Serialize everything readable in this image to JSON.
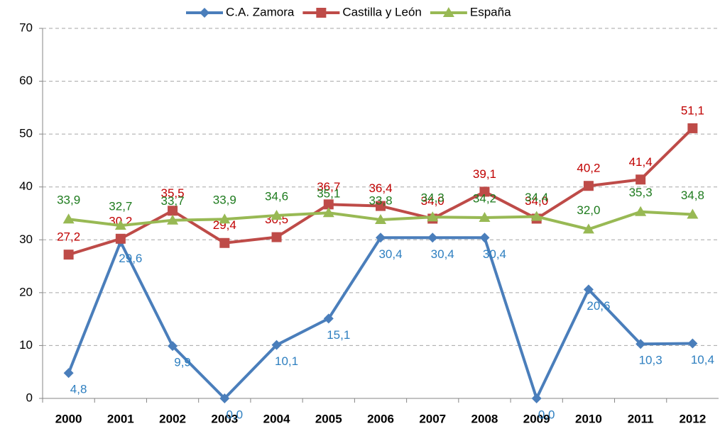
{
  "chart_data": {
    "type": "line",
    "categories": [
      "2000",
      "2001",
      "2002",
      "2003",
      "2004",
      "2005",
      "2006",
      "2007",
      "2008",
      "2009",
      "2010",
      "2011",
      "2012"
    ],
    "series": [
      {
        "name": "C.A. Zamora",
        "color": "#4a7ebb",
        "label_color": "#2e7fc0",
        "marker": "diamond",
        "values": [
          4.8,
          29.6,
          9.9,
          0.0,
          10.1,
          15.1,
          30.4,
          30.4,
          30.4,
          0.0,
          20.6,
          10.3,
          10.4
        ],
        "value_labels": [
          "4,8",
          "29,6",
          "9,9",
          "0,0",
          "10,1",
          "15,1",
          "30,4",
          "30,4",
          "30,4",
          "0,0",
          "20,6",
          "10,3",
          "10,4"
        ]
      },
      {
        "name": "Castilla y León",
        "color": "#be4b48",
        "label_color": "#c00000",
        "marker": "square",
        "values": [
          27.2,
          30.2,
          35.5,
          29.4,
          30.5,
          36.7,
          36.4,
          34.0,
          39.1,
          34.0,
          40.2,
          41.4,
          51.1
        ],
        "value_labels": [
          "27,2",
          "30,2",
          "35,5",
          "29,4",
          "30,5",
          "36,7",
          "36,4",
          "34,0",
          "39,1",
          "34,0",
          "40,2",
          "41,4",
          "51,1"
        ]
      },
      {
        "name": "España",
        "color": "#98b954",
        "label_color": "#1e7b1e",
        "marker": "triangle",
        "values": [
          33.9,
          32.7,
          33.7,
          33.9,
          34.6,
          35.1,
          33.8,
          34.3,
          34.2,
          34.4,
          32.0,
          35.3,
          34.8
        ],
        "value_labels": [
          "33,9",
          "32,7",
          "33,7",
          "33,9",
          "34,6",
          "35,1",
          "33,8",
          "34,3",
          "34,2",
          "34,4",
          "32,0",
          "35,3",
          "34,8"
        ]
      }
    ],
    "ylim": [
      0,
      70
    ],
    "yticks": [
      0,
      10,
      20,
      30,
      40,
      50,
      60,
      70
    ],
    "grid": true,
    "legend": "top"
  }
}
